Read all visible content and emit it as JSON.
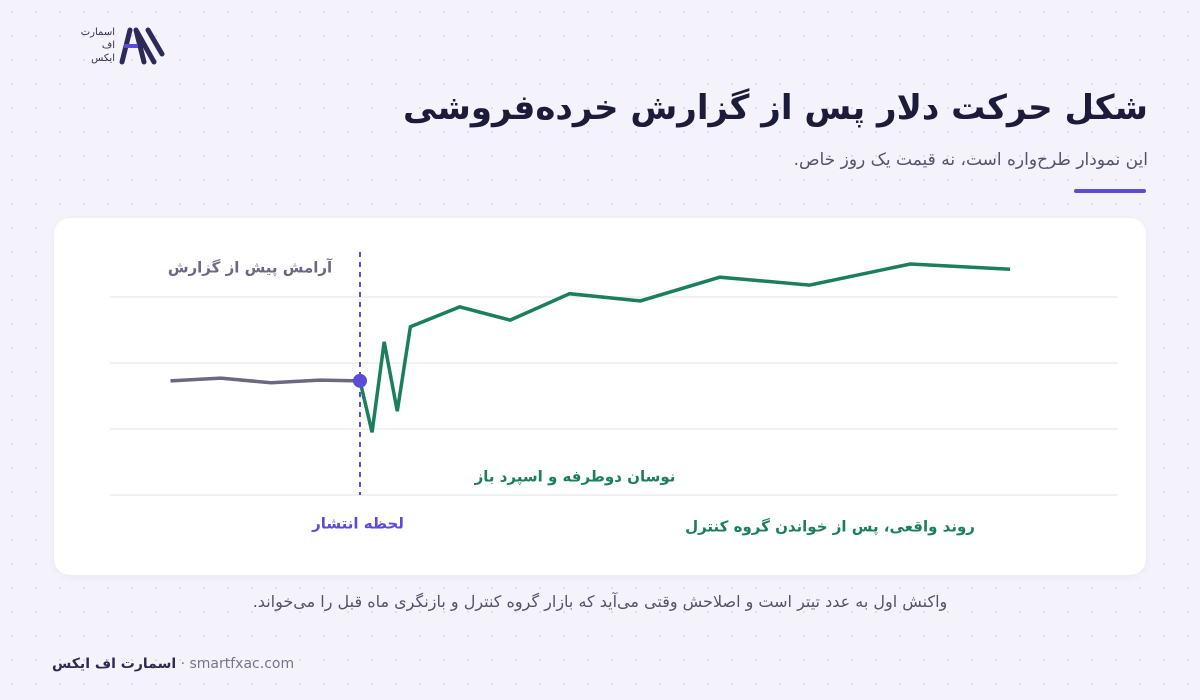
{
  "brand": {
    "lines": [
      "اسمارت",
      "اف",
      "ایکس"
    ]
  },
  "title": "شکل حرکت دلار پس از گزارش خرده‌فروشی",
  "subtitle": "این نمودار طرح‌واره است، نه قیمت یک روز خاص.",
  "chart_data": {
    "type": "line",
    "xlim": [
      0,
      10
    ],
    "ylim": [
      0,
      4
    ],
    "yticks": [
      0,
      1,
      2,
      3
    ],
    "grid": true,
    "event_x": 2.48,
    "series": [
      {
        "color": "#6b6980",
        "x": [
          0.6,
          1.1,
          1.6,
          2.08,
          2.48
        ],
        "values": [
          1.73,
          1.77,
          1.7,
          1.74,
          1.73
        ]
      },
      {
        "color": "#1a7f5a",
        "x": [
          2.48,
          2.6,
          2.72,
          2.85,
          2.98,
          3.47,
          3.97,
          4.56,
          5.26,
          6.05,
          6.94,
          7.94,
          8.93
        ],
        "values": [
          1.73,
          0.95,
          2.32,
          1.27,
          2.55,
          2.85,
          2.65,
          3.05,
          2.94,
          3.3,
          3.18,
          3.5,
          3.42
        ]
      }
    ],
    "annotations": [
      {
        "text": "آرامش پیش از گزارش",
        "color": "#6b6980"
      },
      {
        "text": "لحظه انتشار",
        "color": "#5b4bd6"
      },
      {
        "text": "نوسان دوطرفه و اسپرد باز",
        "color": "#1a7f5a"
      },
      {
        "text": "روند واقعی، پس از خواندن گروه کنترل",
        "color": "#1a7f5a"
      }
    ]
  },
  "caption": "واکنش اول به عدد تیتر است و اصلاحش وقتی می‌آید که بازار گروه کنترل و بازنگری ماه قبل را می‌خواند.",
  "footer": {
    "brand": "اسمارت اف ایکس",
    "site": "smartfxac.com"
  }
}
